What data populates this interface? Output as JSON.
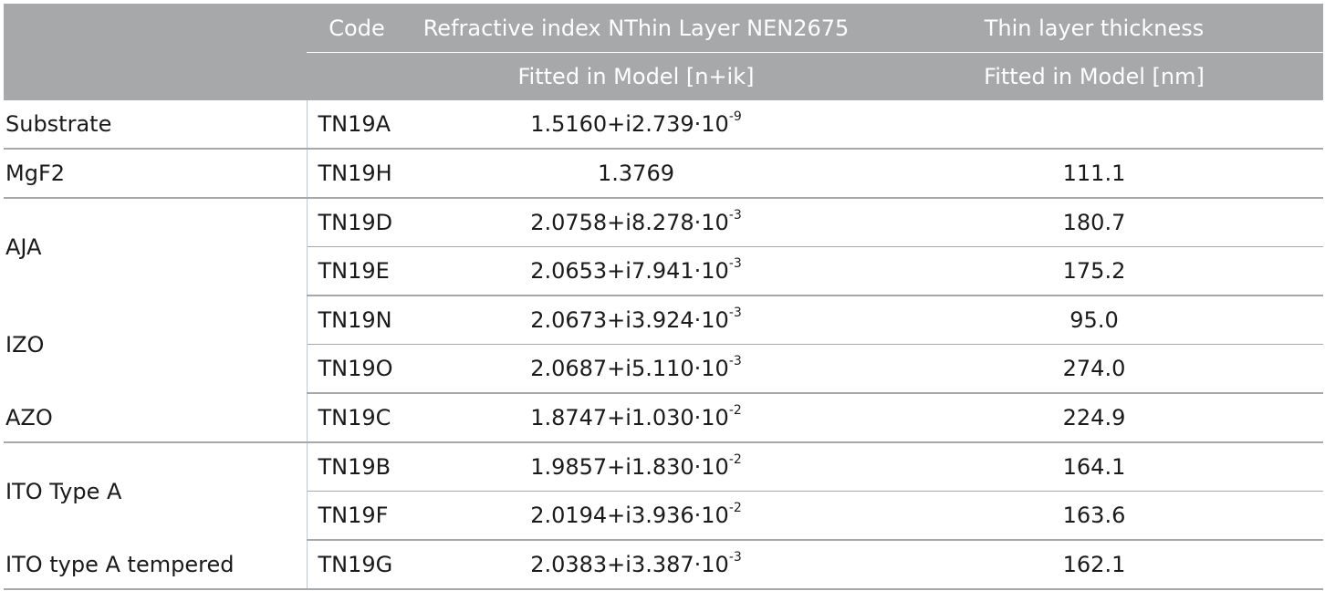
{
  "header": {
    "code": "Code",
    "refr_title": "Refractive index NThin Layer NEN2675",
    "thick_title": "Thin layer thickness",
    "refr_sub": "Fitted in Model [n+ik]",
    "thick_sub": "Fitted in Model [nm]"
  },
  "rows": [
    {
      "layer": "Substrate",
      "code": "TN19A",
      "n": "1.5160+i2.739·10",
      "exp": "-9",
      "t": ""
    },
    {
      "layer": "MgF2",
      "code": "TN19H",
      "n": "1.3769",
      "exp": "",
      "t": "111.1"
    },
    {
      "layer": "AJA",
      "code": "TN19D",
      "n": "2.0758+i8.278·10",
      "exp": "-3",
      "t": "180.7"
    },
    {
      "layer": "",
      "code": "TN19E",
      "n": "2.0653+i7.941·10",
      "exp": "-3",
      "t": "175.2"
    },
    {
      "layer": "IZO",
      "code": "TN19N",
      "n": "2.0673+i3.924·10",
      "exp": "-3",
      "t": "95.0"
    },
    {
      "layer": "",
      "code": "TN19O",
      "n": "2.0687+i5.110·10",
      "exp": "-3",
      "t": "274.0"
    },
    {
      "layer": "AZO",
      "code": "TN19C",
      "n": "1.8747+i1.030·10",
      "exp": "-2",
      "t": "224.9"
    },
    {
      "layer": "ITO Type A",
      "code": "TN19B",
      "n": "1.9857+i1.830·10",
      "exp": "-2",
      "t": "164.1"
    },
    {
      "layer": "",
      "code": "TN19F",
      "n": "2.0194+i3.936·10",
      "exp": "-2",
      "t": "163.6"
    },
    {
      "layer": "ITO type A tempered",
      "code": "TN19G",
      "n": "2.0383+i3.387·10",
      "exp": "-3",
      "t": "162.1"
    }
  ]
}
